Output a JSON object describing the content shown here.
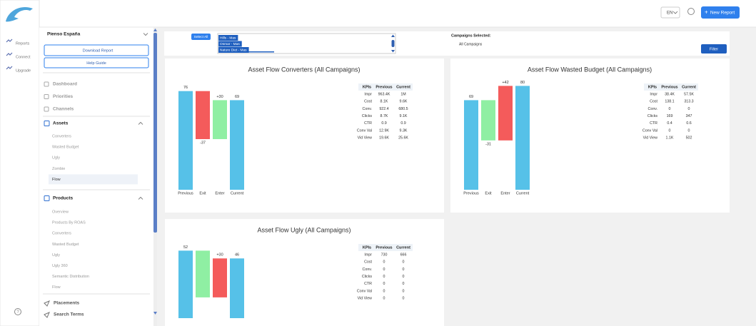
{
  "nav": {
    "items": [
      "Reports",
      "Connect",
      "Upgrade"
    ]
  },
  "topbar": {
    "language": "EN",
    "new_report": "New Report"
  },
  "sidebar": {
    "account": "Pienso España",
    "download": "Download Report",
    "help": "Help Guide",
    "top_items": [
      "Dashboard",
      "Priorities",
      "Channels"
    ],
    "sections": [
      {
        "title": "Assets",
        "items": [
          "Converters",
          "Wasted Budget",
          "Ugly",
          "Zombie",
          "Flow"
        ]
      },
      {
        "title": "Products",
        "items": [
          "Overview",
          "Products By ROAS",
          "Converters",
          "Wasted Budget",
          "Ugly",
          "Ugly 360",
          "Semantic Distribution",
          "Flow"
        ]
      }
    ],
    "bottom_items": [
      "Placements",
      "Search Terms"
    ]
  },
  "filter": {
    "select_all": "Select All",
    "campaigns": [
      "Hills - Mas",
      "Osmar - Mas",
      "Nature Diet - Mas"
    ],
    "selected_label": "Campaigns Selected:",
    "selected_value": "All Campaigns",
    "button": "Filter"
  },
  "chart_data": [
    {
      "type": "waterfall",
      "title": "Asset Flow Converters (All Campaigns)",
      "categories": [
        "Previous",
        "Exit",
        "Enter",
        "Current"
      ],
      "values": [
        76,
        -37,
        30,
        69
      ],
      "value_labels": [
        "76",
        "-37",
        "+30",
        "69"
      ],
      "colors": [
        "#56c1e8",
        "#f45b5b",
        "#8fefa3",
        "#56c1e8"
      ]
    },
    {
      "type": "waterfall",
      "title": "Asset Flow Wasted Budget (All Campaigns)",
      "categories": [
        "Previous",
        "Exit",
        "Enter",
        "Current"
      ],
      "values": [
        69,
        -31,
        42,
        80
      ],
      "value_labels": [
        "69",
        "-31",
        "+42",
        "80"
      ],
      "colors": [
        "#56c1e8",
        "#8fefa3",
        "#f45b5b",
        "#56c1e8"
      ]
    },
    {
      "type": "waterfall",
      "title": "Asset Flow Ugly (All Campaigns)",
      "values": [
        52,
        -36,
        30,
        46
      ],
      "value_labels": [
        "52",
        null,
        "+30",
        "46"
      ],
      "colors": [
        "#56c1e8",
        "#8fefa3",
        "#f45b5b",
        "#56c1e8"
      ]
    }
  ],
  "kpi_tables": [
    {
      "header": [
        "KPIs",
        "Previous",
        "Current"
      ],
      "rows": [
        [
          "Impr",
          "963.4K",
          "1M"
        ],
        [
          "Cost",
          "8.1K",
          "9.6K"
        ],
        [
          "Conv.",
          "922.4",
          "680.5"
        ],
        [
          "Clicks",
          "8.7K",
          "9.1K"
        ],
        [
          "CTR",
          "0.9",
          "0.9"
        ],
        [
          "Conv Val",
          "12.9K",
          "9.3K"
        ],
        [
          "Vid View",
          "19.6K",
          "25.6K"
        ]
      ]
    },
    {
      "header": [
        "KPIs",
        "Previous",
        "Current"
      ],
      "rows": [
        [
          "Impr",
          "38.4K",
          "57.5K"
        ],
        [
          "Cost",
          "138.1",
          "313.3"
        ],
        [
          "Conv.",
          "0",
          "0"
        ],
        [
          "Clicks",
          "169",
          "347"
        ],
        [
          "CTR",
          "0.4",
          "0.6"
        ],
        [
          "Conv Val",
          "0",
          "0"
        ],
        [
          "Vid View",
          "1.1K",
          "502"
        ]
      ]
    },
    {
      "header": [
        "KPIs",
        "Previous",
        "Current"
      ],
      "rows": [
        [
          "Impr",
          "730",
          "666"
        ],
        [
          "Cost",
          "0",
          "0"
        ],
        [
          "Conv.",
          "0",
          "0"
        ],
        [
          "Clicks",
          "0",
          "0"
        ],
        [
          "CTR",
          "0",
          "0"
        ],
        [
          "Conv Val",
          "0",
          "0"
        ],
        [
          "Vid View",
          "0",
          "0"
        ]
      ]
    }
  ]
}
